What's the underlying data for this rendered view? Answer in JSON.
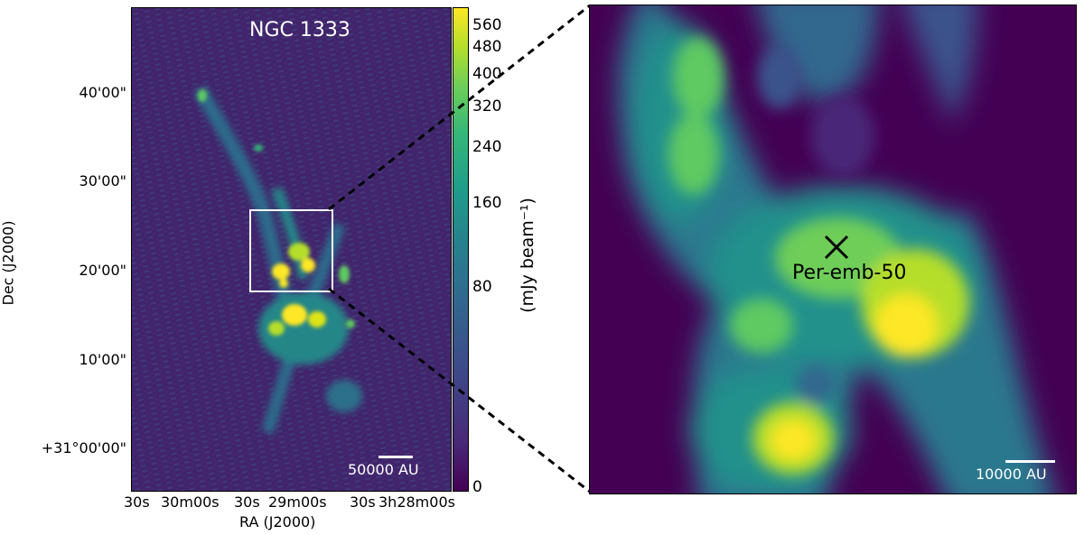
{
  "left_panel": {
    "title": "NGC 1333",
    "scale_bar_label": "50000 AU",
    "dec_axis_title": "Dec (J2000)",
    "ra_axis_title": "RA (J2000)",
    "dec_ticks": [
      "40'00\"",
      "30'00\"",
      "20'00\"",
      "10'00\"",
      "+31°00'00\""
    ],
    "ra_ticks": [
      "30s",
      "30m00s",
      "30s",
      "29m00s",
      "30s",
      "3h28m00s"
    ]
  },
  "colorbar": {
    "label": "(mJy beam⁻¹)",
    "ticks": [
      "560",
      "480",
      "400",
      "320",
      "240",
      "160",
      "80",
      "0"
    ]
  },
  "right_panel": {
    "source_label": "Per-emb-50",
    "scale_bar_label": "10000 AU"
  },
  "colors": {
    "background": "#440154",
    "low": "#3b528b",
    "mid": "#21918c",
    "high": "#5ec962",
    "peak": "#fde725"
  }
}
